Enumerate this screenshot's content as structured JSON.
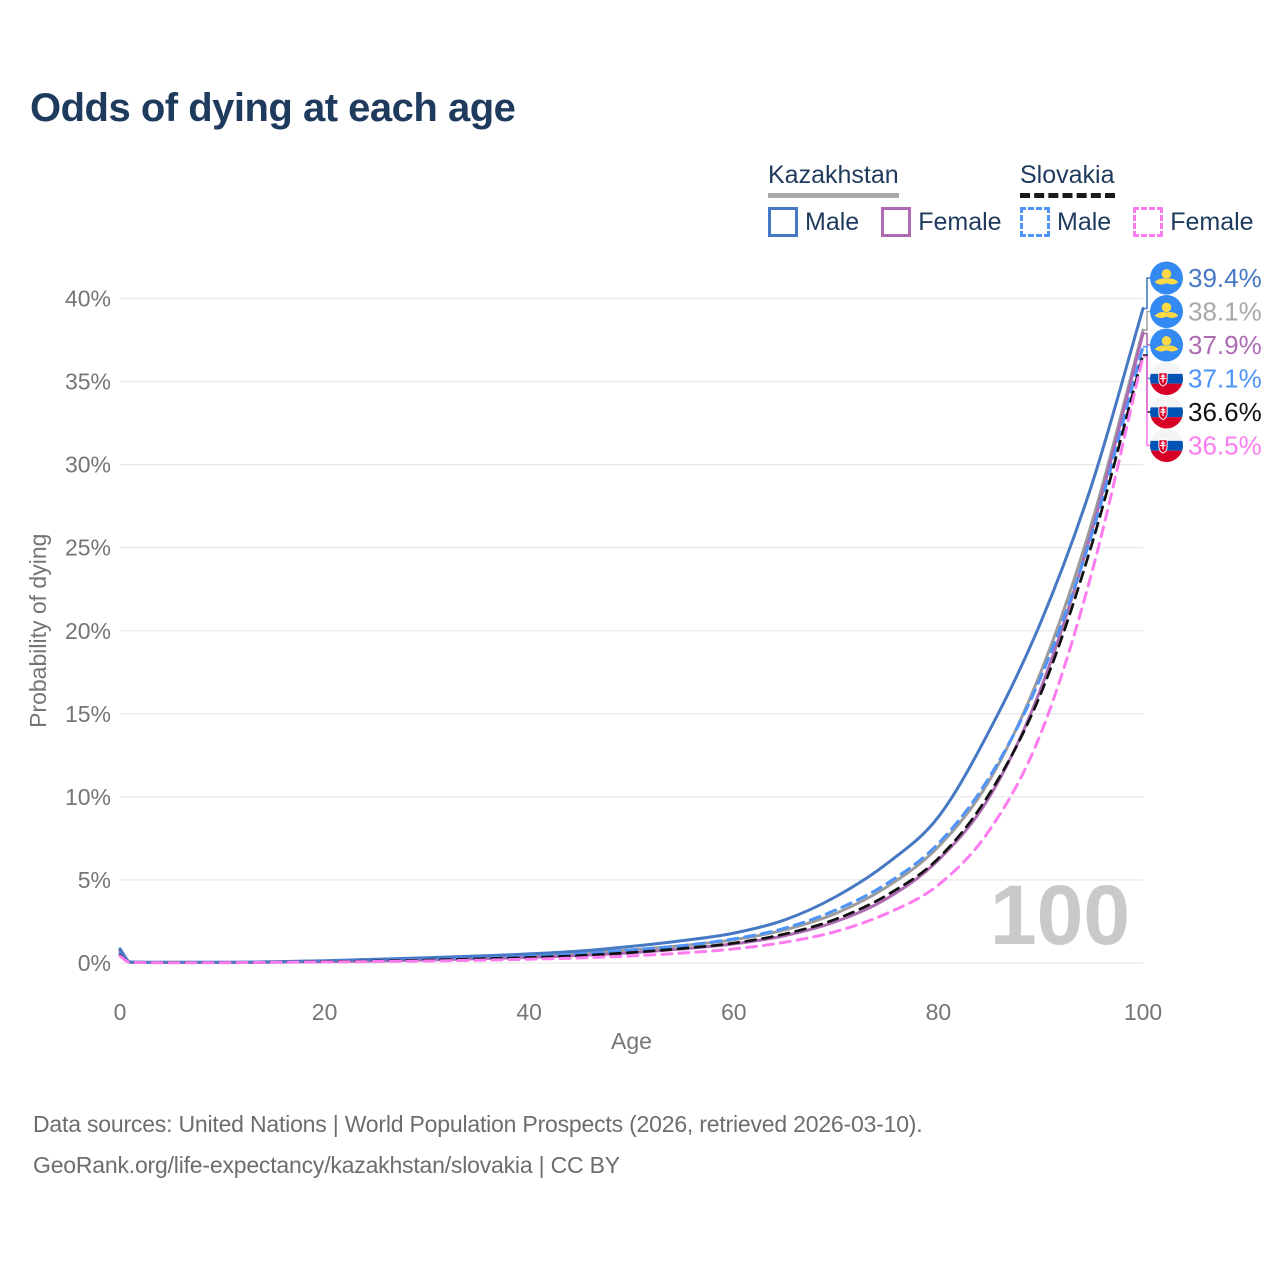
{
  "title": "Odds of dying at each age",
  "legend": {
    "groups": [
      {
        "id": "kz",
        "label": "Kazakhstan",
        "underline": "solid",
        "items": [
          {
            "label": "Male",
            "color": "#4678c4",
            "dash": false
          },
          {
            "label": "Female",
            "color": "#ae6bb4",
            "dash": false
          }
        ]
      },
      {
        "id": "sk",
        "label": "Slovakia",
        "underline": "dashed",
        "items": [
          {
            "label": "Male",
            "color": "#4f94fa",
            "dash": true
          },
          {
            "label": "Female",
            "color": "#fc7cf0",
            "dash": true
          }
        ]
      }
    ]
  },
  "chart_data": {
    "type": "line",
    "title": "Odds of dying at each age",
    "xlabel": "Age",
    "ylabel": "Probability of dying",
    "xlim": [
      0,
      100
    ],
    "ylim": [
      0,
      40
    ],
    "x_ticks": [
      "0",
      "20",
      "40",
      "60",
      "80",
      "100"
    ],
    "x_tick_values": [
      0,
      20,
      40,
      60,
      80,
      100
    ],
    "y_ticks": [
      "0%",
      "5%",
      "10%",
      "15%",
      "20%",
      "25%",
      "30%",
      "35%",
      "40%"
    ],
    "y_tick_values": [
      0,
      5,
      10,
      15,
      20,
      25,
      30,
      35,
      40
    ],
    "grid": "horizontal",
    "legend_position": "top-right",
    "watermark": "100",
    "x": [
      0,
      1,
      5,
      10,
      15,
      20,
      25,
      30,
      35,
      40,
      45,
      50,
      55,
      60,
      65,
      70,
      75,
      80,
      85,
      90,
      95,
      100
    ],
    "series": [
      {
        "name": "Kazakhstan Male",
        "flag": "kz",
        "style": "solid",
        "color": "#4678c4",
        "end_label": "39.4%",
        "end_value": 39.4,
        "label_color": "#4678c4",
        "values": [
          0.85,
          0.06,
          0.04,
          0.04,
          0.08,
          0.14,
          0.22,
          0.32,
          0.42,
          0.55,
          0.72,
          1.0,
          1.35,
          1.8,
          2.6,
          4.0,
          6.0,
          8.8,
          14.0,
          20.5,
          28.8,
          39.4
        ]
      },
      {
        "name": "Kazakhstan Both sexes",
        "flag": "kz",
        "style": "solid",
        "color": "#9c9c9c",
        "end_label": "38.1%",
        "end_value": 38.1,
        "label_color": "#a8a8a8",
        "values": [
          0.75,
          0.05,
          0.035,
          0.035,
          0.07,
          0.12,
          0.18,
          0.26,
          0.35,
          0.45,
          0.6,
          0.8,
          1.05,
          1.4,
          2.0,
          3.0,
          4.6,
          7.0,
          11.0,
          17.5,
          26.5,
          38.1
        ]
      },
      {
        "name": "Kazakhstan Female",
        "flag": "kz",
        "style": "solid",
        "color": "#ae6bb4",
        "end_label": "37.9%",
        "end_value": 37.9,
        "label_color": "#ae6bb4",
        "values": [
          0.68,
          0.05,
          0.03,
          0.03,
          0.05,
          0.08,
          0.12,
          0.18,
          0.25,
          0.34,
          0.46,
          0.62,
          0.85,
          1.15,
          1.65,
          2.5,
          3.9,
          6.2,
          10.0,
          16.5,
          26.0,
          37.9
        ]
      },
      {
        "name": "Slovakia Male",
        "flag": "sk",
        "style": "dashed",
        "color": "#4f94fa",
        "end_label": "37.1%",
        "end_value": 37.1,
        "label_color": "#4f94fa",
        "values": [
          0.55,
          0.04,
          0.03,
          0.03,
          0.06,
          0.11,
          0.16,
          0.22,
          0.3,
          0.4,
          0.55,
          0.78,
          1.05,
          1.45,
          2.1,
          3.2,
          4.8,
          7.2,
          11.2,
          17.2,
          25.8,
          37.1
        ]
      },
      {
        "name": "Slovakia Both sexes",
        "flag": "sk",
        "style": "dashed",
        "color": "#111111",
        "end_label": "36.6%",
        "end_value": 36.6,
        "label_color": "#111111",
        "values": [
          0.48,
          0.04,
          0.025,
          0.025,
          0.05,
          0.09,
          0.13,
          0.18,
          0.25,
          0.33,
          0.45,
          0.63,
          0.88,
          1.2,
          1.75,
          2.65,
          4.1,
          6.3,
          10.2,
          16.2,
          25.2,
          36.6
        ]
      },
      {
        "name": "Slovakia Female",
        "flag": "sk",
        "style": "dashed",
        "color": "#fc7cf0",
        "end_label": "36.5%",
        "end_value": 36.5,
        "label_color": "#fc7cf0",
        "values": [
          0.42,
          0.035,
          0.02,
          0.02,
          0.04,
          0.06,
          0.09,
          0.12,
          0.17,
          0.23,
          0.31,
          0.43,
          0.6,
          0.85,
          1.25,
          1.9,
          3.0,
          4.7,
          8.0,
          13.8,
          23.5,
          36.5
        ]
      }
    ]
  },
  "footer": {
    "line1": "Data sources: United Nations | World Population Prospects (2026, retrieved 2026-03-10).",
    "line2": "GeoRank.org/life-expectancy/kazakhstan/slovakia | CC BY"
  },
  "colors": {
    "title_text": "#1e3a5c",
    "axis_text": "#757575",
    "gridline": "#e9e9e9",
    "watermark": "#c9c9c9",
    "footer_text": "#6d6d6d",
    "kz_flag_blue": "#338af3",
    "kz_flag_yellow": "#ffda44",
    "sk_flag_blue": "#0052b4",
    "sk_flag_red": "#d80027"
  }
}
